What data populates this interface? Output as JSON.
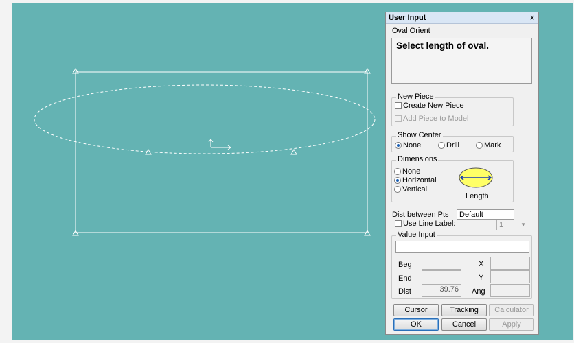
{
  "dialog": {
    "title": "User Input",
    "close_glyph": "×",
    "command_label": "Oval Orient",
    "prompt": "Select length of oval.",
    "new_piece": {
      "legend": "New Piece",
      "create_new_piece": {
        "label": "Create New Piece",
        "checked": false,
        "enabled": true
      },
      "add_piece_to_model": {
        "label": "Add Piece to Model",
        "checked": false,
        "enabled": false
      }
    },
    "show_center": {
      "legend": "Show Center",
      "options": [
        "None",
        "Drill",
        "Mark"
      ],
      "selected": "None"
    },
    "dimensions": {
      "legend": "Dimensions",
      "options": [
        "None",
        "Horizontal",
        "Vertical"
      ],
      "selected": "Horizontal",
      "preview_caption": "Length",
      "preview_fill": "#ffff66",
      "preview_arrow": "#1a3bb0"
    },
    "dist_between_pts": {
      "label": "Dist between Pts",
      "value": "Default"
    },
    "use_line_label": {
      "label": "Use Line Label:",
      "checked": false,
      "dropdown_value": "1"
    },
    "value_input": {
      "legend": "Value Input",
      "value": "",
      "beg_label": "Beg",
      "end_label": "End",
      "dist_label": "Dist",
      "dist_value": "39.76",
      "x_label": "X",
      "y_label": "Y",
      "ang_label": "Ang"
    },
    "buttons": {
      "cursor": "Cursor",
      "tracking": "Tracking",
      "calculator": "Calculator",
      "ok": "OK",
      "cancel": "Cancel",
      "apply": "Apply"
    }
  },
  "colors": {
    "canvas_bg": "#64b3b3",
    "drawing_line": "#ffffff"
  }
}
